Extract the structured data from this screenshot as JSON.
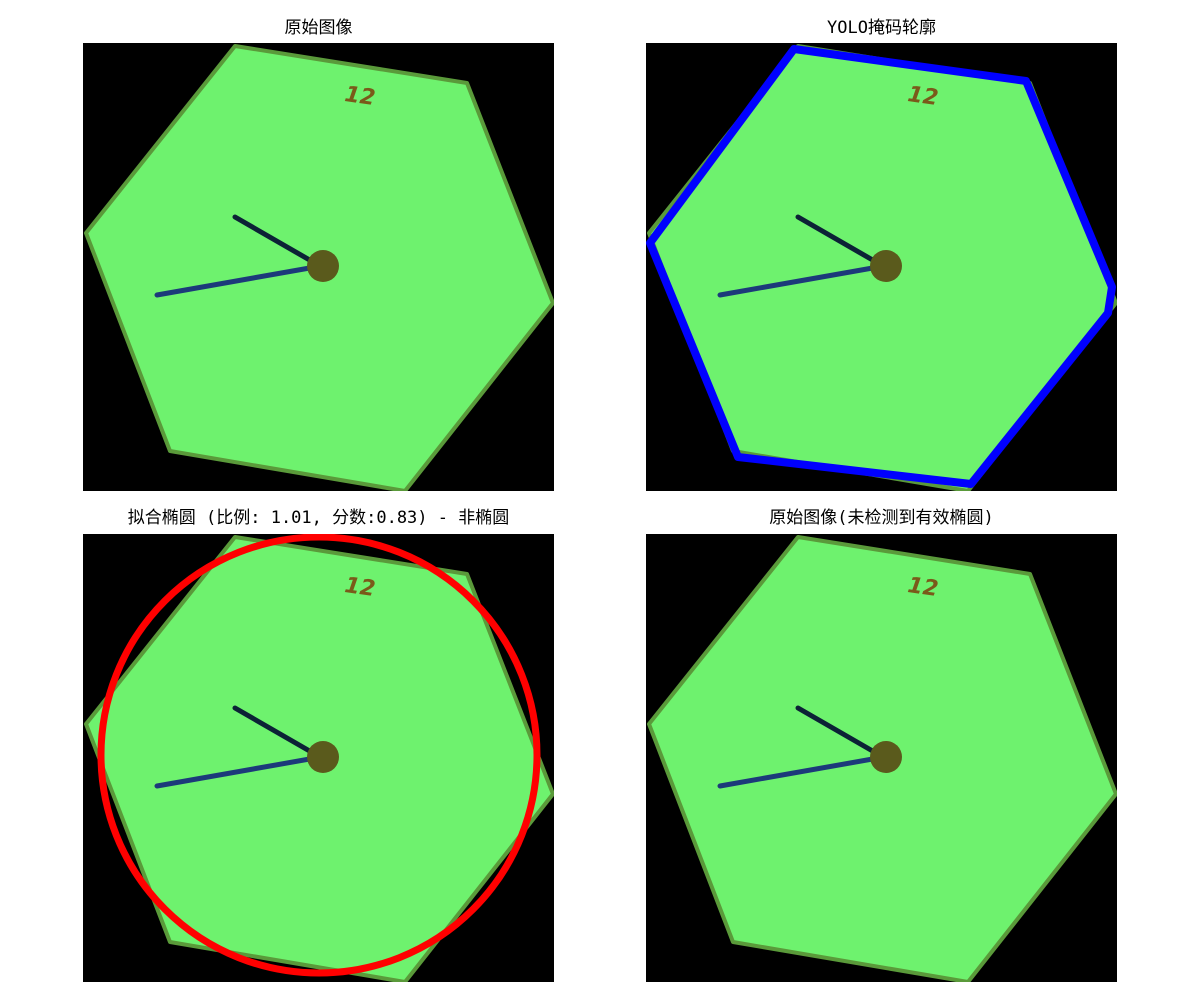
{
  "figure": {
    "panels": [
      {
        "title": "原始图像"
      },
      {
        "title": "YOLO掩码轮廓"
      },
      {
        "title": "拟合椭圆 (比例: 1.01, 分数:0.83) - 非椭圆"
      },
      {
        "title": "原始图像(未检测到有效椭圆)"
      }
    ]
  },
  "image": {
    "clock_number": "12",
    "colors": {
      "background": "#000000",
      "hexagon_fill": "#6ef26e",
      "hexagon_edge": "#5a9a3a",
      "hand_short": "#0c2236",
      "hand_long": "#1c3a7a",
      "hub": "#5a5a1c",
      "number": "#7a5a1a"
    }
  },
  "overlays": {
    "contour_color": "#0000ff",
    "ellipse_color": "#ff0000"
  }
}
